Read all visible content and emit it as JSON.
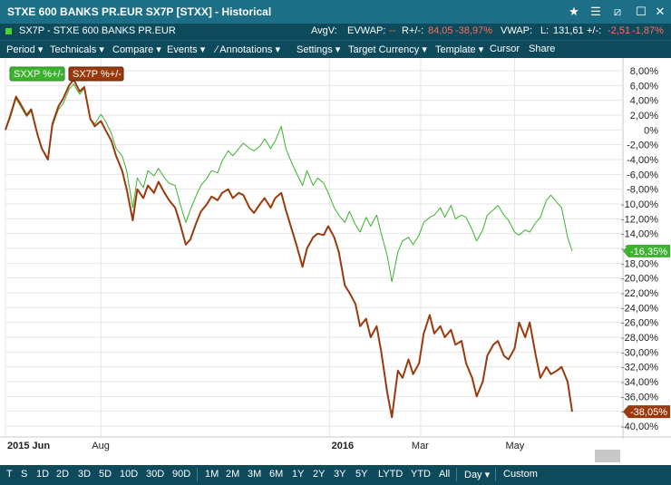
{
  "window": {
    "title": "STXE 600 BANKS PR.EUR SX7P [STXX] - Historical",
    "controls": [
      "star-icon",
      "menu-icon",
      "unlink-icon",
      "close-icon"
    ]
  },
  "info": {
    "symbol": "SX7P - STXE 600 BANKS PR.EUR",
    "avgv_label": "AvgV:",
    "evwap_label": "EVWAP:",
    "evwap_value": "--",
    "rpm_label": "R+/-:",
    "rpm_value": "84,05",
    "rpm_pct": "-38,97%",
    "vwap_label": "VWAP:",
    "last_label": "L:",
    "last_value": "131,61",
    "change_label": "+/-:",
    "change_value": "-2,51",
    "change_pct": "-1,87%"
  },
  "menu": [
    "Period",
    "Technicals",
    "Compare",
    "Events",
    "Annotations",
    "Settings",
    "Target Currency",
    "Template",
    "Cursor",
    "Share"
  ],
  "periods": [
    "T",
    "S",
    "1D",
    "2D",
    "3D",
    "5D",
    "10D",
    "30D",
    "90D",
    "1M",
    "2M",
    "3M",
    "6M",
    "1Y",
    "2Y",
    "3Y",
    "5Y",
    "LYTD",
    "YTD",
    "All"
  ],
  "interval": "Day",
  "custom_label": "Custom",
  "colors": {
    "sxxp": "#3cb22e",
    "sx7p": "#9a3a0c"
  },
  "chart_data": {
    "type": "line",
    "ylim": [
      -40,
      8
    ],
    "yticks": [
      "8,00%",
      "6,00%",
      "4,00%",
      "2,00%",
      "0%",
      "-2,00%",
      "-4,00%",
      "-6,00%",
      "-8,00%",
      "-10,00%",
      "-12,00%",
      "-14,00%",
      "-16,00%",
      "-18,00%",
      "-20,00%",
      "-22,00%",
      "-24,00%",
      "-26,00%",
      "-28,00%",
      "-30,00%",
      "-32,00%",
      "-34,00%",
      "-36,00%",
      "-38,00%",
      "-40,00%"
    ],
    "ytick_values": [
      8,
      6,
      4,
      2,
      0,
      -2,
      -4,
      -6,
      -8,
      -10,
      -12,
      -14,
      -16,
      -18,
      -20,
      -22,
      -24,
      -26,
      -28,
      -30,
      -32,
      -34,
      -36,
      -38,
      -40
    ],
    "xlim": [
      "2015-06-01",
      "2016-06-03"
    ],
    "xticks": [
      {
        "date": "2015-06-01",
        "label": "2015 Jun",
        "bold": true
      },
      {
        "date": "2015-08-03",
        "label": "Aug",
        "bold": false
      },
      {
        "date": "2016-01-01",
        "label": "2016",
        "bold": true
      },
      {
        "date": "2016-03-01",
        "label": "Mar",
        "bold": false
      },
      {
        "date": "2016-05-02",
        "label": "May",
        "bold": false
      }
    ],
    "series": [
      {
        "name": "SXXP %+/-",
        "color": "#3cb22e",
        "last_label": "-16,35%",
        "points": [
          [
            "2015-06-01",
            0
          ],
          [
            "2015-06-04",
            1.5
          ],
          [
            "2015-06-08",
            4.2
          ],
          [
            "2015-06-11",
            3.2
          ],
          [
            "2015-06-15",
            1.8
          ],
          [
            "2015-06-18",
            2.5
          ],
          [
            "2015-06-22",
            -0.5
          ],
          [
            "2015-06-25",
            -2.5
          ],
          [
            "2015-06-29",
            -3.8
          ],
          [
            "2015-07-02",
            0.5
          ],
          [
            "2015-07-06",
            2.8
          ],
          [
            "2015-07-09",
            3.5
          ],
          [
            "2015-07-13",
            5.5
          ],
          [
            "2015-07-16",
            6.2
          ],
          [
            "2015-07-20",
            4.8
          ],
          [
            "2015-07-23",
            5.6
          ],
          [
            "2015-07-27",
            1.5
          ],
          [
            "2015-07-30",
            0.8
          ],
          [
            "2015-08-03",
            2.1
          ],
          [
            "2015-08-06",
            1.2
          ],
          [
            "2015-08-10",
            -0.5
          ],
          [
            "2015-08-13",
            -2.5
          ],
          [
            "2015-08-17",
            -3.5
          ],
          [
            "2015-08-20",
            -5.5
          ],
          [
            "2015-08-24",
            -10.5
          ],
          [
            "2015-08-27",
            -6.5
          ],
          [
            "2015-08-31",
            -7.8
          ],
          [
            "2015-09-03",
            -5.5
          ],
          [
            "2015-09-07",
            -6.2
          ],
          [
            "2015-09-10",
            -5.2
          ],
          [
            "2015-09-14",
            -6.5
          ],
          [
            "2015-09-17",
            -7.2
          ],
          [
            "2015-09-21",
            -7.5
          ],
          [
            "2015-09-24",
            -9.8
          ],
          [
            "2015-09-28",
            -12.5
          ],
          [
            "2015-10-01",
            -10.8
          ],
          [
            "2015-10-05",
            -8.8
          ],
          [
            "2015-10-08",
            -7.5
          ],
          [
            "2015-10-12",
            -6.5
          ],
          [
            "2015-10-15",
            -5.5
          ],
          [
            "2015-10-19",
            -5.8
          ],
          [
            "2015-10-22",
            -4.2
          ],
          [
            "2015-10-26",
            -2.8
          ],
          [
            "2015-10-29",
            -3.5
          ],
          [
            "2015-11-02",
            -2.5
          ],
          [
            "2015-11-05",
            -1.8
          ],
          [
            "2015-11-09",
            -2.5
          ],
          [
            "2015-11-12",
            -2.8
          ],
          [
            "2015-11-16",
            -2.2
          ],
          [
            "2015-11-19",
            -1.2
          ],
          [
            "2015-11-23",
            -2.5
          ],
          [
            "2015-11-26",
            -1.5
          ],
          [
            "2015-11-30",
            0.5
          ],
          [
            "2015-12-03",
            -2.5
          ],
          [
            "2015-12-07",
            -4.5
          ],
          [
            "2015-12-10",
            -5.8
          ],
          [
            "2015-12-14",
            -7.5
          ],
          [
            "2015-12-17",
            -5.5
          ],
          [
            "2015-12-21",
            -7.5
          ],
          [
            "2015-12-24",
            -6.5
          ],
          [
            "2015-12-28",
            -7.2
          ],
          [
            "2015-12-31",
            -8.5
          ],
          [
            "2016-01-04",
            -10.5
          ],
          [
            "2016-01-07",
            -11.5
          ],
          [
            "2016-01-11",
            -12.5
          ],
          [
            "2016-01-14",
            -11.0
          ],
          [
            "2016-01-18",
            -12.8
          ],
          [
            "2016-01-21",
            -13.8
          ],
          [
            "2016-01-25",
            -11.8
          ],
          [
            "2016-01-28",
            -13.0
          ],
          [
            "2016-02-01",
            -11.5
          ],
          [
            "2016-02-04",
            -14.0
          ],
          [
            "2016-02-08",
            -17.0
          ],
          [
            "2016-02-11",
            -20.5
          ],
          [
            "2016-02-15",
            -16.5
          ],
          [
            "2016-02-18",
            -15.0
          ],
          [
            "2016-02-22",
            -14.5
          ],
          [
            "2016-02-25",
            -15.5
          ],
          [
            "2016-02-29",
            -14.2
          ],
          [
            "2016-03-03",
            -12.5
          ],
          [
            "2016-03-07",
            -11.8
          ],
          [
            "2016-03-10",
            -11.5
          ],
          [
            "2016-03-14",
            -10.5
          ],
          [
            "2016-03-17",
            -11.8
          ],
          [
            "2016-03-21",
            -10.2
          ],
          [
            "2016-03-24",
            -12.0
          ],
          [
            "2016-03-28",
            -11.5
          ],
          [
            "2016-03-31",
            -11.8
          ],
          [
            "2016-04-04",
            -13.5
          ],
          [
            "2016-04-07",
            -15.0
          ],
          [
            "2016-04-11",
            -13.5
          ],
          [
            "2016-04-14",
            -11.5
          ],
          [
            "2016-04-18",
            -10.8
          ],
          [
            "2016-04-21",
            -10.2
          ],
          [
            "2016-04-25",
            -11.5
          ],
          [
            "2016-04-28",
            -12.2
          ],
          [
            "2016-05-02",
            -13.8
          ],
          [
            "2016-05-05",
            -14.2
          ],
          [
            "2016-05-09",
            -13.5
          ],
          [
            "2016-05-12",
            -13.8
          ],
          [
            "2016-05-16",
            -12.5
          ],
          [
            "2016-05-19",
            -11.8
          ],
          [
            "2016-05-23",
            -9.5
          ],
          [
            "2016-05-26",
            -8.8
          ],
          [
            "2016-05-30",
            -9.8
          ],
          [
            "2016-06-02",
            -10.5
          ],
          [
            "2016-06-06",
            -14.5
          ],
          [
            "2016-06-09",
            -16.35
          ]
        ]
      },
      {
        "name": "SX7P %+/-",
        "color": "#9a3a0c",
        "last_label": "-38,05%",
        "points": [
          [
            "2015-06-01",
            0
          ],
          [
            "2015-06-04",
            1.8
          ],
          [
            "2015-06-08",
            4.5
          ],
          [
            "2015-06-11",
            3.5
          ],
          [
            "2015-06-15",
            2.0
          ],
          [
            "2015-06-18",
            2.8
          ],
          [
            "2015-06-22",
            -0.5
          ],
          [
            "2015-06-25",
            -2.5
          ],
          [
            "2015-06-29",
            -4.0
          ],
          [
            "2015-07-02",
            0.8
          ],
          [
            "2015-07-06",
            3.2
          ],
          [
            "2015-07-09",
            4.2
          ],
          [
            "2015-07-13",
            6.0
          ],
          [
            "2015-07-16",
            6.8
          ],
          [
            "2015-07-20",
            5.2
          ],
          [
            "2015-07-23",
            5.8
          ],
          [
            "2015-07-27",
            1.5
          ],
          [
            "2015-07-30",
            0.5
          ],
          [
            "2015-08-03",
            1.2
          ],
          [
            "2015-08-06",
            0.0
          ],
          [
            "2015-08-10",
            -1.5
          ],
          [
            "2015-08-13",
            -3.5
          ],
          [
            "2015-08-17",
            -5.5
          ],
          [
            "2015-08-20",
            -8.0
          ],
          [
            "2015-08-24",
            -12.2
          ],
          [
            "2015-08-27",
            -8.0
          ],
          [
            "2015-08-31",
            -9.2
          ],
          [
            "2015-09-03",
            -7.5
          ],
          [
            "2015-09-07",
            -8.5
          ],
          [
            "2015-09-10",
            -7.0
          ],
          [
            "2015-09-14",
            -8.5
          ],
          [
            "2015-09-17",
            -9.5
          ],
          [
            "2015-09-21",
            -10.5
          ],
          [
            "2015-09-24",
            -12.5
          ],
          [
            "2015-09-28",
            -15.5
          ],
          [
            "2015-10-01",
            -14.8
          ],
          [
            "2015-10-05",
            -12.5
          ],
          [
            "2015-10-08",
            -11.0
          ],
          [
            "2015-10-12",
            -10.0
          ],
          [
            "2015-10-15",
            -9.0
          ],
          [
            "2015-10-19",
            -9.5
          ],
          [
            "2015-10-22",
            -8.5
          ],
          [
            "2015-10-26",
            -8.0
          ],
          [
            "2015-10-29",
            -9.2
          ],
          [
            "2015-11-02",
            -8.5
          ],
          [
            "2015-11-05",
            -8.8
          ],
          [
            "2015-11-09",
            -10.5
          ],
          [
            "2015-11-12",
            -11.2
          ],
          [
            "2015-11-16",
            -10.0
          ],
          [
            "2015-11-19",
            -9.2
          ],
          [
            "2015-11-23",
            -10.5
          ],
          [
            "2015-11-26",
            -9.2
          ],
          [
            "2015-11-30",
            -8.5
          ],
          [
            "2015-12-03",
            -10.8
          ],
          [
            "2015-12-07",
            -13.5
          ],
          [
            "2015-12-10",
            -15.5
          ],
          [
            "2015-12-14",
            -18.5
          ],
          [
            "2015-12-17",
            -16.0
          ],
          [
            "2015-12-21",
            -14.5
          ],
          [
            "2015-12-24",
            -14.0
          ],
          [
            "2015-12-28",
            -14.2
          ],
          [
            "2015-12-31",
            -13.0
          ],
          [
            "2016-01-04",
            -14.5
          ],
          [
            "2016-01-07",
            -16.5
          ],
          [
            "2016-01-11",
            -21.0
          ],
          [
            "2016-01-14",
            -22.0
          ],
          [
            "2016-01-18",
            -23.5
          ],
          [
            "2016-01-21",
            -26.5
          ],
          [
            "2016-01-25",
            -25.5
          ],
          [
            "2016-01-28",
            -28.0
          ],
          [
            "2016-02-01",
            -26.5
          ],
          [
            "2016-02-04",
            -30.0
          ],
          [
            "2016-02-08",
            -35.5
          ],
          [
            "2016-02-11",
            -38.8
          ],
          [
            "2016-02-15",
            -32.5
          ],
          [
            "2016-02-18",
            -33.5
          ],
          [
            "2016-02-22",
            -31.0
          ],
          [
            "2016-02-25",
            -33.0
          ],
          [
            "2016-02-29",
            -31.5
          ],
          [
            "2016-03-03",
            -27.5
          ],
          [
            "2016-03-07",
            -25.0
          ],
          [
            "2016-03-10",
            -27.5
          ],
          [
            "2016-03-14",
            -26.5
          ],
          [
            "2016-03-17",
            -28.0
          ],
          [
            "2016-03-21",
            -27.0
          ],
          [
            "2016-03-24",
            -29.0
          ],
          [
            "2016-03-28",
            -28.5
          ],
          [
            "2016-03-31",
            -31.5
          ],
          [
            "2016-04-04",
            -33.5
          ],
          [
            "2016-04-07",
            -36.0
          ],
          [
            "2016-04-11",
            -34.0
          ],
          [
            "2016-04-14",
            -30.5
          ],
          [
            "2016-04-18",
            -29.0
          ],
          [
            "2016-04-21",
            -28.5
          ],
          [
            "2016-04-25",
            -30.5
          ],
          [
            "2016-04-28",
            -31.0
          ],
          [
            "2016-05-02",
            -29.5
          ],
          [
            "2016-05-05",
            -26.0
          ],
          [
            "2016-05-09",
            -28.0
          ],
          [
            "2016-05-12",
            -26.0
          ],
          [
            "2016-05-16",
            -30.5
          ],
          [
            "2016-05-19",
            -33.5
          ],
          [
            "2016-05-23",
            -32.0
          ],
          [
            "2016-05-26",
            -33.0
          ],
          [
            "2016-05-30",
            -32.5
          ],
          [
            "2016-06-02",
            -32.0
          ],
          [
            "2016-06-06",
            -34.0
          ],
          [
            "2016-06-09",
            -38.05
          ]
        ]
      }
    ]
  }
}
